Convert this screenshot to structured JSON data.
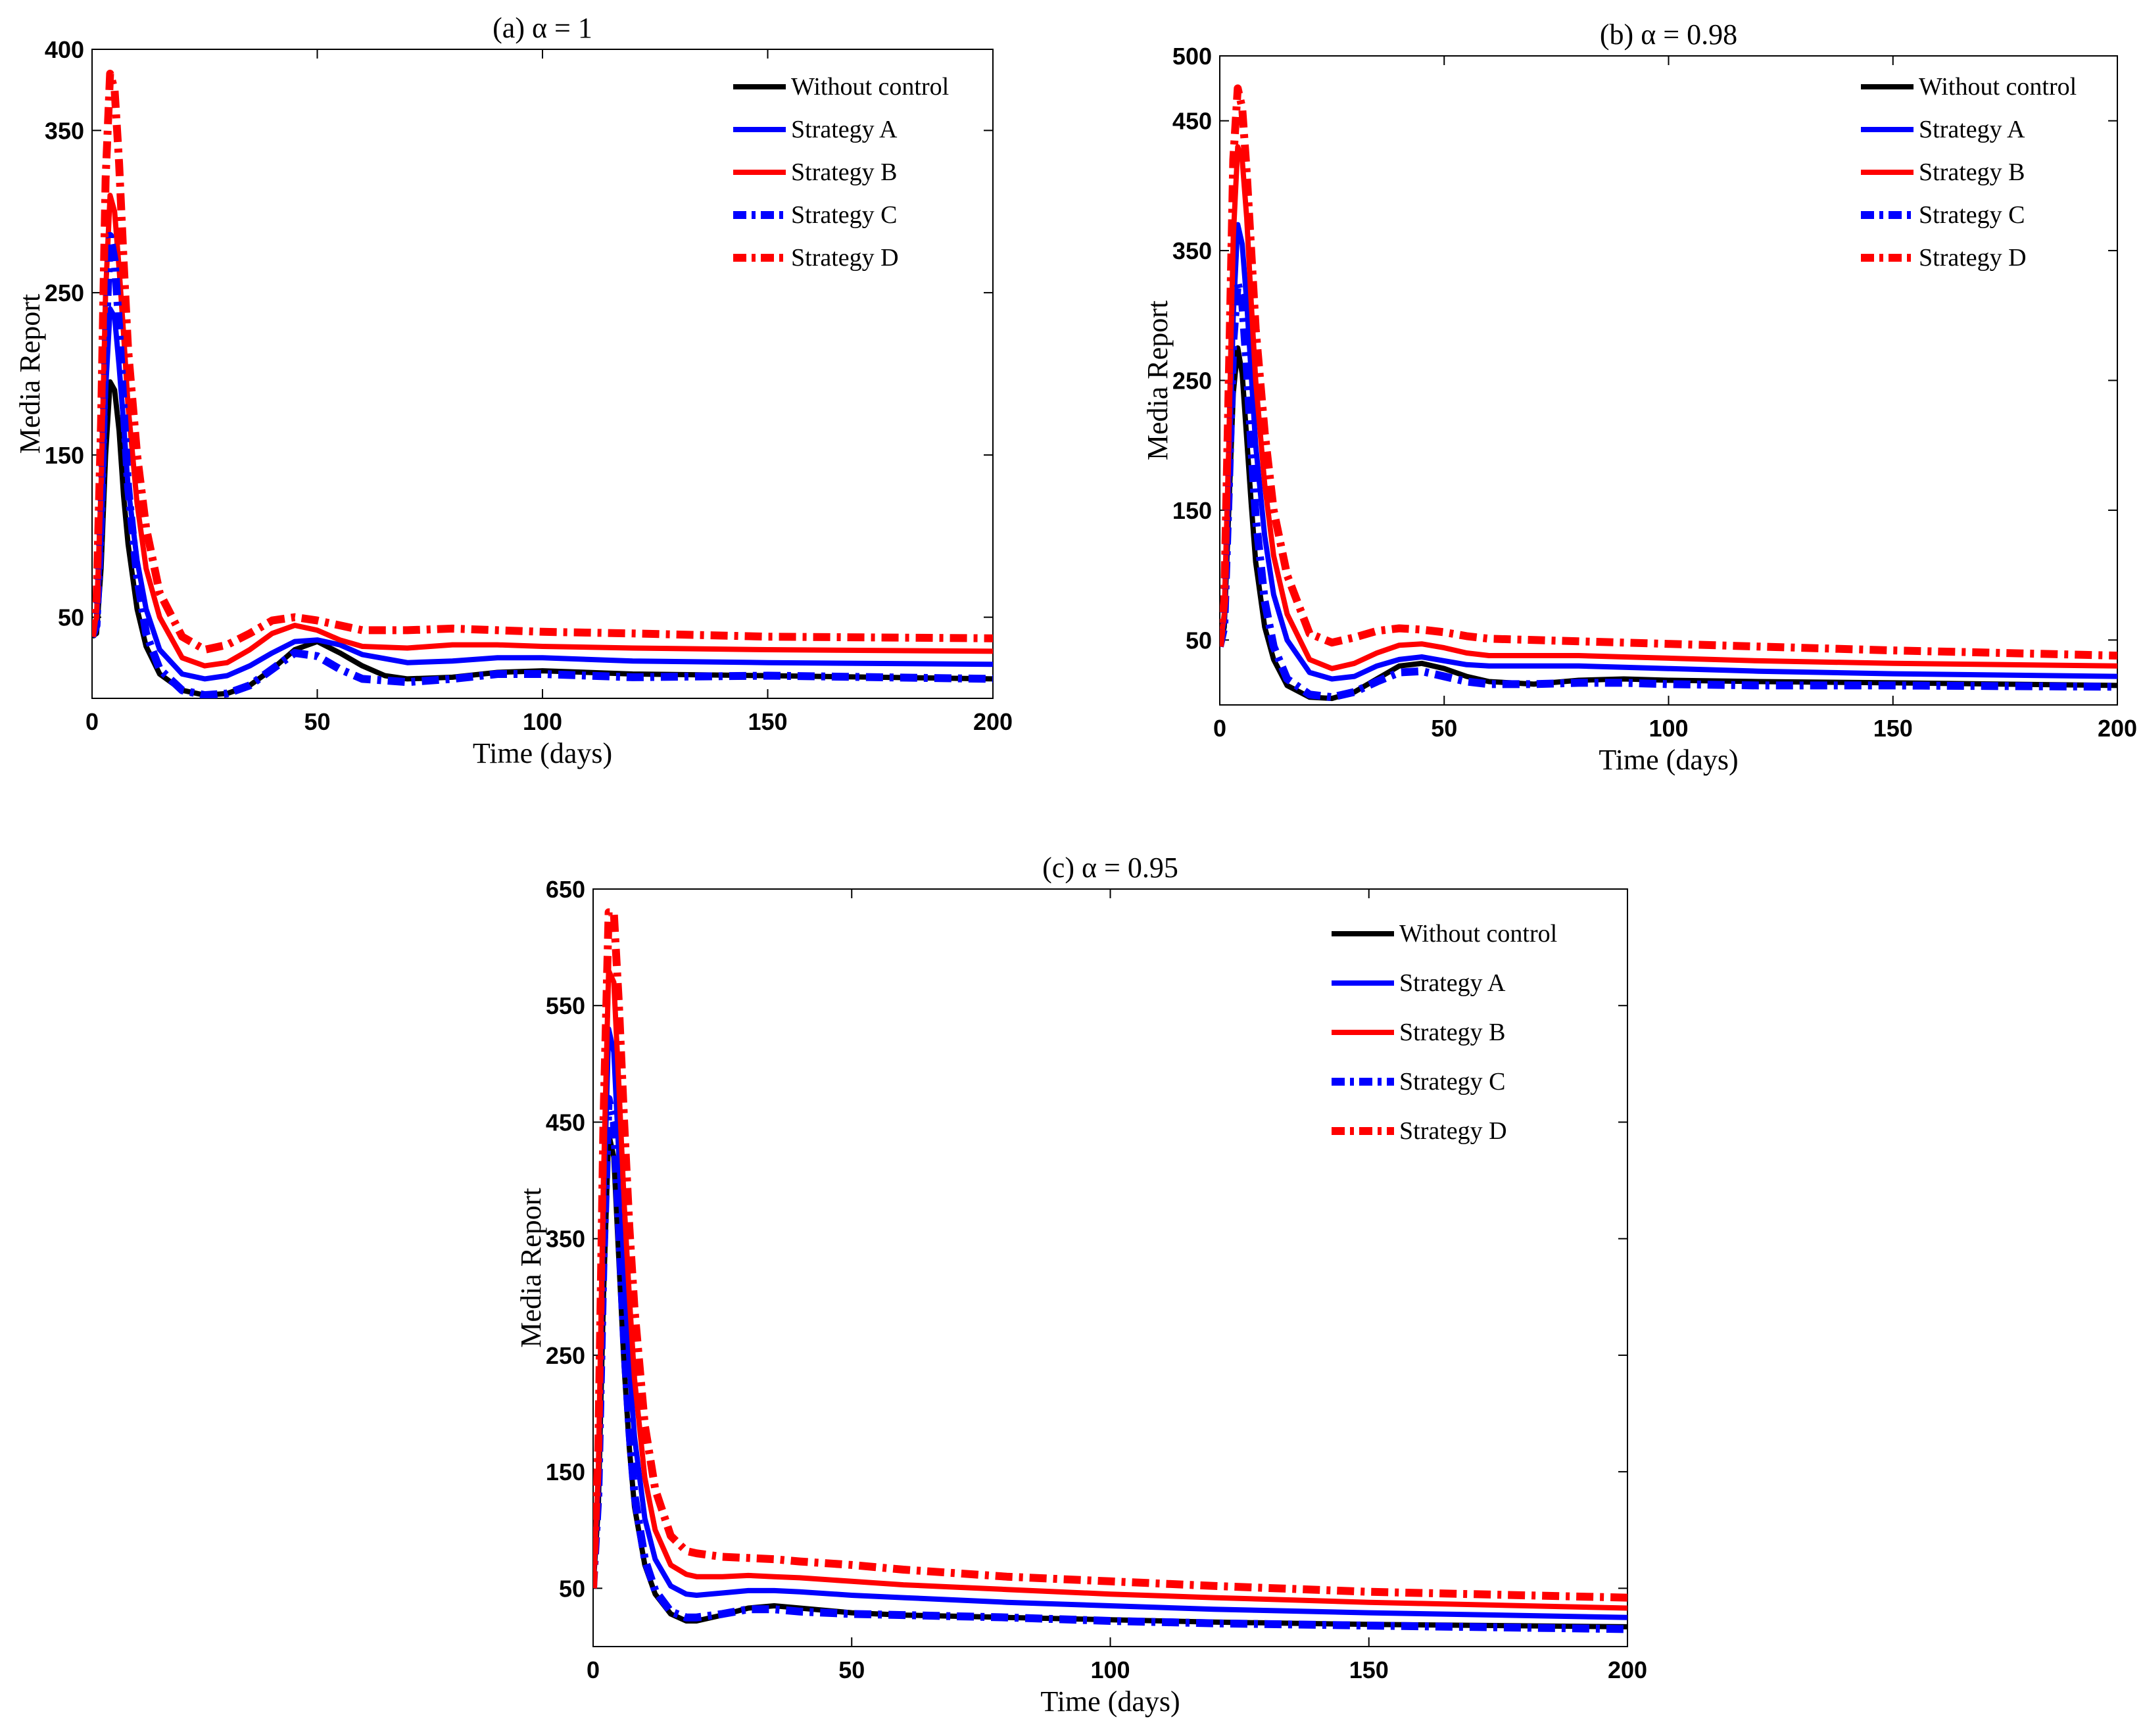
{
  "figure": {
    "legend_labels": [
      "Without control",
      "Strategy A",
      "Strategy B",
      "Strategy C",
      "Strategy D"
    ]
  },
  "styles": {
    "without_control": {
      "color": "#000000",
      "dash": "solid"
    },
    "strategy_a": {
      "color": "#0000ff",
      "dash": "solid"
    },
    "strategy_b": {
      "color": "#ff0000",
      "dash": "solid"
    },
    "strategy_c": {
      "color": "#0000ff",
      "dash": "dashdot"
    },
    "strategy_d": {
      "color": "#ff0000",
      "dash": "dashdot"
    }
  },
  "chart_data": [
    {
      "id": "a",
      "type": "line",
      "title": "(a) α = 1",
      "xlabel": "Time (days)",
      "ylabel": "Media Report",
      "xlim": [
        0,
        200
      ],
      "ylim": [
        0,
        400
      ],
      "xticks": [
        0,
        50,
        100,
        150,
        200
      ],
      "yticks": [
        50,
        150,
        250,
        350,
        400
      ],
      "legend_position": "top-right",
      "series": [
        {
          "name": "Without control",
          "style": "without_control",
          "x": [
            0,
            1,
            2,
            3,
            4,
            5,
            6,
            7,
            8,
            10,
            12,
            15,
            20,
            25,
            30,
            35,
            40,
            45,
            50,
            55,
            60,
            65,
            70,
            80,
            90,
            100,
            120,
            150,
            200
          ],
          "y": [
            38,
            40,
            80,
            150,
            195,
            190,
            165,
            125,
            95,
            55,
            32,
            15,
            5,
            2,
            3,
            8,
            18,
            30,
            35,
            28,
            20,
            14,
            12,
            13,
            16,
            17,
            15,
            14,
            12
          ]
        },
        {
          "name": "Strategy A",
          "style": "strategy_a",
          "x": [
            0,
            1,
            2,
            3,
            4,
            5,
            6,
            7,
            8,
            10,
            12,
            15,
            20,
            25,
            30,
            35,
            40,
            45,
            50,
            55,
            60,
            70,
            80,
            90,
            100,
            120,
            150,
            200
          ],
          "y": [
            38,
            45,
            100,
            190,
            240,
            235,
            205,
            170,
            130,
            85,
            55,
            30,
            15,
            12,
            14,
            20,
            28,
            35,
            36,
            33,
            27,
            22,
            23,
            25,
            25,
            23,
            22,
            21
          ]
        },
        {
          "name": "Strategy B",
          "style": "strategy_b",
          "x": [
            0,
            1,
            2,
            3,
            4,
            5,
            6,
            7,
            8,
            10,
            12,
            15,
            20,
            25,
            30,
            35,
            40,
            45,
            50,
            55,
            60,
            70,
            80,
            90,
            100,
            120,
            150,
            200
          ],
          "y": [
            38,
            50,
            130,
            250,
            310,
            300,
            265,
            225,
            180,
            120,
            80,
            50,
            25,
            20,
            22,
            30,
            40,
            45,
            42,
            36,
            32,
            31,
            33,
            33,
            32,
            31,
            30,
            29
          ]
        },
        {
          "name": "Strategy C",
          "style": "strategy_c",
          "x": [
            0,
            1,
            2,
            3,
            4,
            5,
            6,
            7,
            8,
            10,
            12,
            15,
            20,
            25,
            30,
            35,
            40,
            45,
            50,
            55,
            60,
            70,
            80,
            90,
            100,
            120,
            150,
            200
          ],
          "y": [
            38,
            45,
            110,
            220,
            285,
            270,
            230,
            180,
            130,
            75,
            40,
            18,
            5,
            2,
            3,
            8,
            18,
            28,
            26,
            18,
            12,
            10,
            12,
            15,
            15,
            13,
            14,
            12
          ]
        },
        {
          "name": "Strategy D",
          "style": "strategy_d",
          "x": [
            0,
            1,
            2,
            3,
            4,
            5,
            6,
            7,
            8,
            10,
            12,
            15,
            20,
            25,
            30,
            35,
            40,
            45,
            50,
            55,
            60,
            70,
            80,
            90,
            100,
            120,
            150,
            200
          ],
          "y": [
            38,
            60,
            170,
            320,
            385,
            375,
            330,
            270,
            215,
            150,
            105,
            65,
            38,
            30,
            33,
            40,
            48,
            50,
            48,
            45,
            42,
            42,
            43,
            42,
            41,
            40,
            38,
            37
          ]
        }
      ]
    },
    {
      "id": "b",
      "type": "line",
      "title": "(b) α = 0.98",
      "xlabel": "Time (days)",
      "ylabel": "Media Report",
      "xlim": [
        0,
        200
      ],
      "ylim": [
        0,
        500
      ],
      "xticks": [
        0,
        50,
        100,
        150,
        200
      ],
      "yticks": [
        50,
        150,
        250,
        350,
        450,
        500
      ],
      "legend_position": "top-right",
      "series": [
        {
          "name": "Without control",
          "style": "without_control",
          "x": [
            0,
            1,
            2,
            3,
            4,
            5,
            6,
            7,
            8,
            10,
            12,
            15,
            20,
            25,
            30,
            35,
            40,
            45,
            50,
            55,
            60,
            70,
            80,
            90,
            100,
            120,
            150,
            200
          ],
          "y": [
            45,
            60,
            150,
            240,
            275,
            255,
            205,
            155,
            110,
            60,
            35,
            15,
            6,
            5,
            10,
            20,
            30,
            32,
            28,
            22,
            18,
            16,
            19,
            20,
            19,
            18,
            17,
            15
          ]
        },
        {
          "name": "Strategy A",
          "style": "strategy_a",
          "x": [
            0,
            1,
            2,
            3,
            4,
            5,
            6,
            7,
            8,
            10,
            12,
            15,
            20,
            25,
            30,
            35,
            40,
            45,
            50,
            55,
            60,
            70,
            80,
            90,
            100,
            120,
            150,
            200
          ],
          "y": [
            45,
            65,
            170,
            300,
            370,
            355,
            310,
            255,
            200,
            130,
            85,
            50,
            25,
            20,
            22,
            30,
            35,
            37,
            34,
            31,
            30,
            30,
            30,
            29,
            28,
            26,
            24,
            22
          ]
        },
        {
          "name": "Strategy B",
          "style": "strategy_b",
          "x": [
            0,
            1,
            2,
            3,
            4,
            5,
            6,
            7,
            8,
            10,
            12,
            15,
            20,
            25,
            30,
            35,
            40,
            45,
            50,
            55,
            60,
            70,
            80,
            90,
            100,
            120,
            150,
            200
          ],
          "y": [
            45,
            70,
            200,
            360,
            430,
            420,
            375,
            310,
            250,
            170,
            115,
            70,
            35,
            28,
            32,
            40,
            46,
            47,
            44,
            40,
            38,
            38,
            38,
            37,
            36,
            34,
            32,
            30
          ]
        },
        {
          "name": "Strategy C",
          "style": "strategy_c",
          "x": [
            0,
            1,
            2,
            3,
            4,
            5,
            6,
            7,
            8,
            10,
            12,
            15,
            20,
            25,
            30,
            35,
            40,
            45,
            50,
            55,
            60,
            70,
            80,
            90,
            100,
            120,
            150,
            200
          ],
          "y": [
            45,
            60,
            165,
            280,
            325,
            310,
            260,
            200,
            145,
            80,
            45,
            20,
            8,
            6,
            10,
            18,
            25,
            26,
            22,
            18,
            16,
            16,
            17,
            17,
            16,
            15,
            15,
            14
          ]
        },
        {
          "name": "Strategy D",
          "style": "strategy_d",
          "x": [
            0,
            1,
            2,
            3,
            4,
            5,
            6,
            7,
            8,
            10,
            12,
            15,
            20,
            25,
            30,
            35,
            40,
            45,
            50,
            55,
            60,
            70,
            80,
            90,
            100,
            120,
            150,
            200
          ],
          "y": [
            45,
            80,
            250,
            420,
            475,
            460,
            410,
            350,
            290,
            210,
            150,
            100,
            55,
            48,
            52,
            57,
            59,
            58,
            56,
            53,
            51,
            50,
            49,
            48,
            47,
            45,
            42,
            38
          ]
        }
      ]
    },
    {
      "id": "c",
      "type": "line",
      "title": "(c) α = 0.95",
      "xlabel": "Time (days)",
      "ylabel": "Media Report",
      "xlim": [
        0,
        200
      ],
      "ylim": [
        0,
        650
      ],
      "xticks": [
        0,
        50,
        100,
        150,
        200
      ],
      "yticks": [
        50,
        150,
        250,
        350,
        450,
        550,
        650
      ],
      "legend_position": "top-right",
      "series": [
        {
          "name": "Without control",
          "style": "without_control",
          "x": [
            0,
            1,
            2,
            3,
            4,
            5,
            6,
            7,
            8,
            10,
            12,
            15,
            18,
            20,
            25,
            30,
            35,
            40,
            50,
            60,
            70,
            80,
            100,
            120,
            150,
            200
          ],
          "y": [
            50,
            120,
            300,
            440,
            420,
            330,
            240,
            170,
            120,
            70,
            45,
            28,
            22,
            22,
            27,
            33,
            35,
            33,
            29,
            27,
            26,
            25,
            23,
            21,
            19,
            17
          ]
        },
        {
          "name": "Strategy A",
          "style": "strategy_a",
          "x": [
            0,
            1,
            2,
            3,
            4,
            5,
            6,
            7,
            8,
            10,
            12,
            15,
            18,
            20,
            25,
            30,
            35,
            40,
            50,
            60,
            70,
            80,
            100,
            120,
            150,
            200
          ],
          "y": [
            50,
            140,
            370,
            530,
            510,
            420,
            320,
            240,
            180,
            110,
            75,
            52,
            45,
            44,
            46,
            48,
            48,
            47,
            44,
            42,
            40,
            38,
            35,
            32,
            29,
            25
          ]
        },
        {
          "name": "Strategy B",
          "style": "strategy_b",
          "x": [
            0,
            1,
            2,
            3,
            4,
            5,
            6,
            7,
            8,
            10,
            12,
            15,
            18,
            20,
            25,
            30,
            35,
            40,
            50,
            60,
            70,
            80,
            100,
            120,
            150,
            200
          ],
          "y": [
            50,
            150,
            400,
            580,
            570,
            480,
            380,
            300,
            230,
            145,
            100,
            70,
            62,
            60,
            60,
            61,
            60,
            59,
            56,
            53,
            51,
            49,
            45,
            42,
            38,
            33
          ]
        },
        {
          "name": "Strategy C",
          "style": "strategy_c",
          "x": [
            0,
            1,
            2,
            3,
            4,
            5,
            6,
            7,
            8,
            10,
            12,
            15,
            18,
            20,
            25,
            30,
            35,
            40,
            50,
            60,
            70,
            80,
            100,
            120,
            150,
            200
          ],
          "y": [
            50,
            130,
            330,
            470,
            450,
            360,
            260,
            185,
            130,
            75,
            48,
            30,
            25,
            25,
            28,
            32,
            32,
            30,
            28,
            27,
            26,
            25,
            22,
            20,
            18,
            15
          ]
        },
        {
          "name": "Strategy D",
          "style": "strategy_d",
          "x": [
            0,
            1,
            2,
            3,
            4,
            5,
            6,
            7,
            8,
            10,
            12,
            15,
            18,
            20,
            25,
            30,
            35,
            40,
            50,
            60,
            70,
            80,
            100,
            120,
            150,
            200
          ],
          "y": [
            50,
            170,
            450,
            630,
            630,
            550,
            450,
            360,
            290,
            190,
            135,
            95,
            82,
            80,
            77,
            76,
            75,
            73,
            70,
            66,
            63,
            60,
            56,
            52,
            47,
            42
          ]
        }
      ]
    }
  ]
}
